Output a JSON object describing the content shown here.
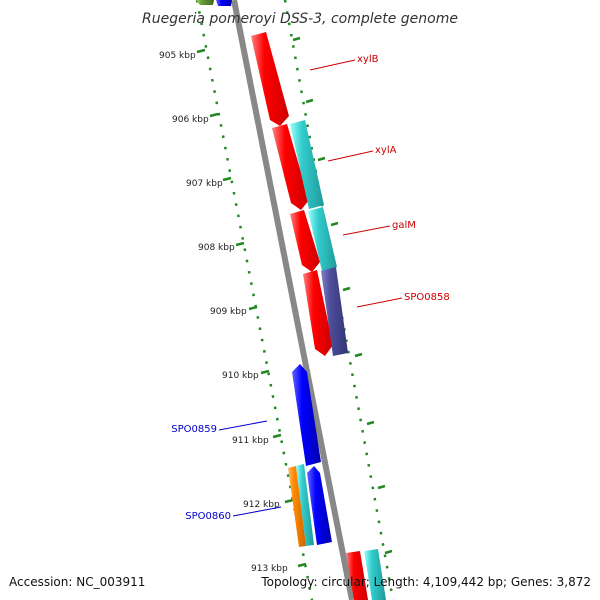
{
  "header": {
    "title": "Ruegeria pomeroyi DSS-3, complete genome"
  },
  "footer": {
    "accession": "Accession: NC_003911",
    "summary": "Topology: circular; Length: 4,109,442 bp; Genes: 3,872"
  },
  "scale": {
    "ticks": [
      "905 kbp",
      "906 kbp",
      "907 kbp",
      "908 kbp",
      "909 kbp",
      "910 kbp",
      "911 kbp",
      "912 kbp",
      "913 kbp"
    ]
  },
  "labels": {
    "xylB": "xylB",
    "xylA": "xylA",
    "galM": "galM",
    "spo0858": "SPO0858",
    "spo0859": "SPO0859",
    "spo0860": "SPO0860"
  },
  "colors": {
    "reverse_strand_gene": "#ff0000",
    "forward_cyan_gene": "#33cccc",
    "forward_purple_gene": "#4d4d99",
    "blue_gene": "#0000ff",
    "orange_gene": "#ff8800",
    "olive_gene": "#669933",
    "backbone": "#888888",
    "tick_green": "#228822",
    "label_red": "#cc0000",
    "label_blue": "#0000cc"
  }
}
